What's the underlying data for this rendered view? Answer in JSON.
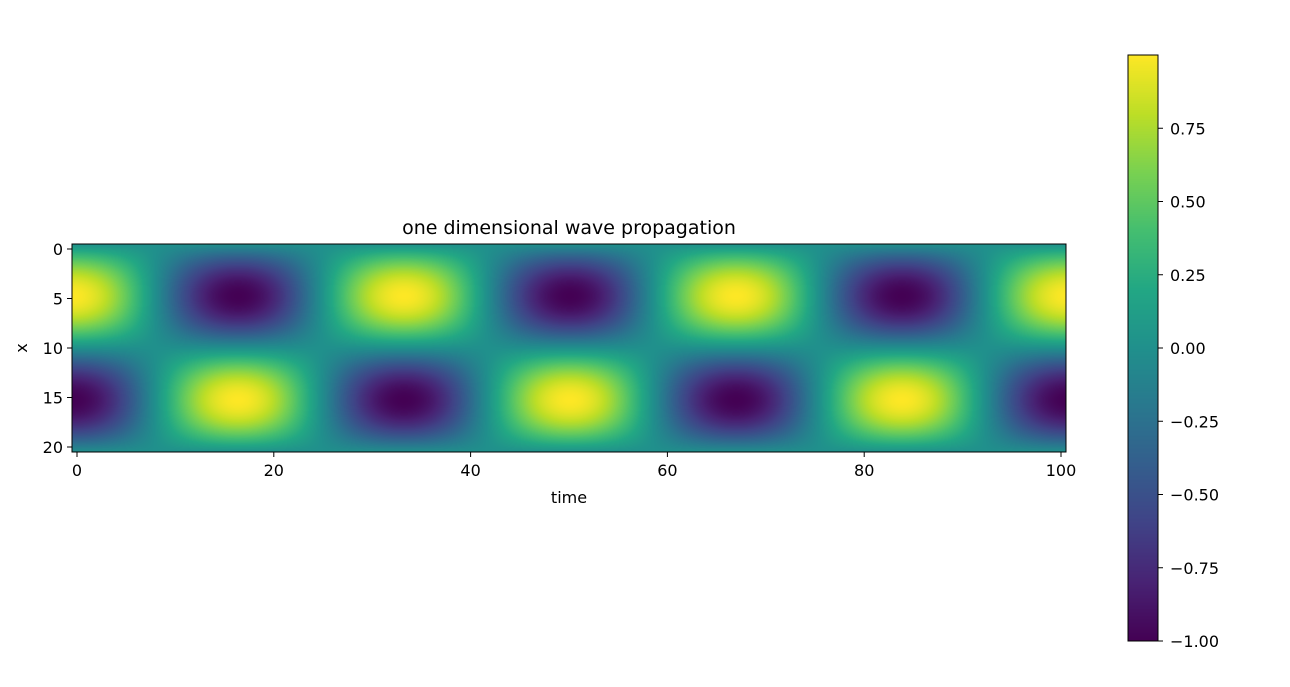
{
  "chart_data": {
    "type": "heatmap",
    "title": "one dimensional wave propagation",
    "xlabel": "time",
    "ylabel": "x",
    "x": {
      "range": [
        0,
        100
      ],
      "ticks": [
        0,
        20,
        40,
        60,
        80,
        100
      ],
      "tick_labels": [
        "0",
        "20",
        "40",
        "60",
        "80",
        "100"
      ]
    },
    "y": {
      "range": [
        0,
        20
      ],
      "inverted": true,
      "ticks": [
        0,
        5,
        10,
        15,
        20
      ],
      "tick_labels": [
        "0",
        "5",
        "10",
        "15",
        "20"
      ]
    },
    "values_function": "sin(2*pi*x/20) * cos(2*pi*time/33.4)",
    "wave": {
      "spatial_period": 20,
      "time_period": 33.4,
      "amplitude": 1
    },
    "colorbar": {
      "colormap": "viridis",
      "range": [
        -1.0,
        1.0
      ],
      "ticks": [
        -1.0,
        -0.75,
        -0.5,
        -0.25,
        0.0,
        0.25,
        0.5,
        0.75
      ],
      "tick_labels": [
        "−1.00",
        "−0.75",
        "−0.50",
        "−0.25",
        "0.00",
        "0.25",
        "0.50",
        "0.75"
      ]
    },
    "grid": false
  }
}
